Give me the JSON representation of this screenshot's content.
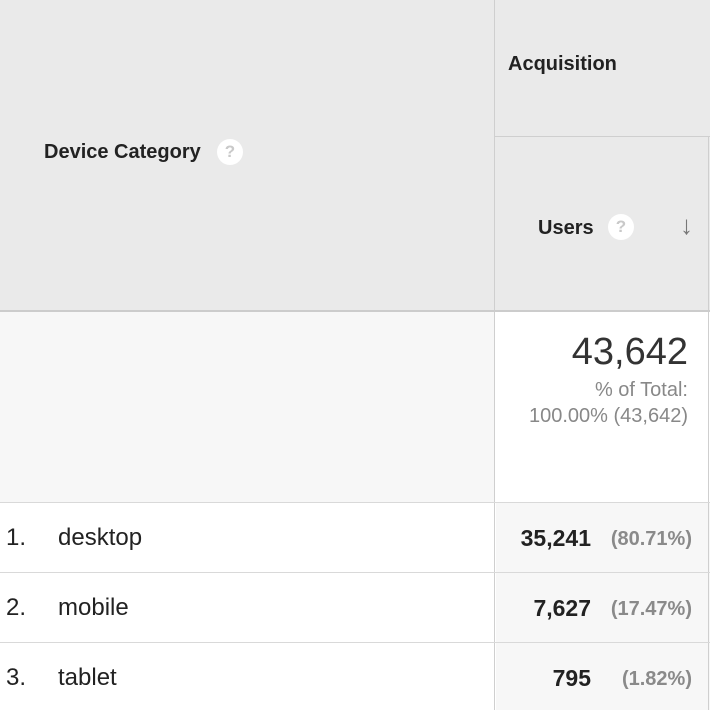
{
  "header": {
    "dimension_label": "Device Category",
    "group_label": "Acquisition",
    "metric_label": "Users",
    "help_glyph": "?",
    "sort_glyph": "↓"
  },
  "totals": {
    "value": "43,642",
    "pct_label": "% of Total:",
    "pct_detail": "100.00% (43,642)"
  },
  "rows": [
    {
      "num": "1.",
      "name": "desktop",
      "users": "35,241",
      "pct": "(80.71%)"
    },
    {
      "num": "2.",
      "name": "mobile",
      "users": "7,627",
      "pct": "(17.47%)"
    },
    {
      "num": "3.",
      "name": "tablet",
      "users": "795",
      "pct": "(1.82%)"
    }
  ]
}
